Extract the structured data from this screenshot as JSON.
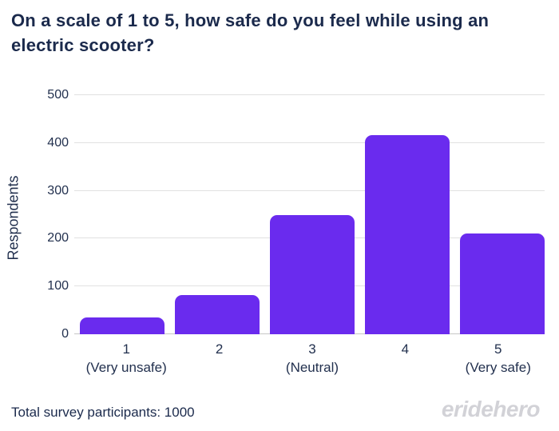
{
  "chart_data": {
    "type": "bar",
    "title": "On a scale of 1 to 5, how safe do you feel while using an electric scooter?",
    "categories": [
      "1",
      "2",
      "3",
      "4",
      "5"
    ],
    "category_sublabels": [
      "(Very unsafe)",
      "",
      "(Neutral)",
      "",
      "(Very safe)"
    ],
    "values": [
      35,
      82,
      250,
      417,
      210
    ],
    "ylabel": "Respondents",
    "ylim": [
      0,
      500
    ],
    "yticks": [
      0,
      100,
      200,
      300,
      400,
      500
    ],
    "grid": true,
    "legend": false,
    "bar_color": "#6A2BEE",
    "grid_color": "#E1E1E1",
    "axis_text_color": "#22304E",
    "title_color": "#1B2A4C",
    "background": "#FFFFFF"
  },
  "footer": {
    "total_label": "Total survey participants: 1000"
  },
  "brand": {
    "name": "eridehero",
    "color": "#D2D2D7"
  }
}
